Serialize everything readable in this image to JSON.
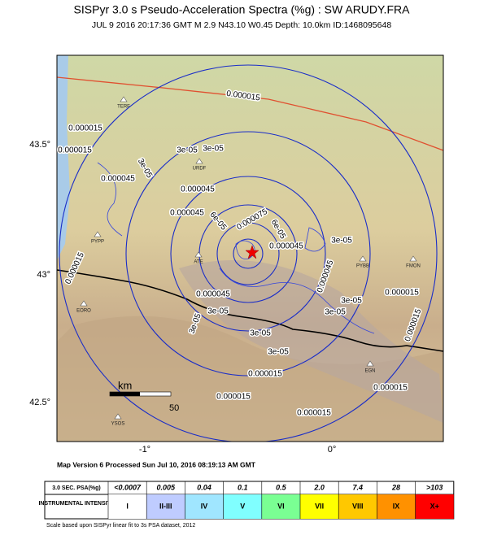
{
  "header": {
    "title": "SISPyr 3.0 s Pseudo-Acceleration Spectra (%g) : SW ARUDY.FRA",
    "subtitle": "JUL 9 2016 20:17:36  GMT   M 2.9   N43.10 W0.45   Depth: 10.0km   ID:1468095648"
  },
  "map": {
    "lat_labels": [
      "43.5°",
      "43°",
      "42.5°"
    ],
    "lon_labels": [
      "-1°",
      "0°"
    ],
    "contour_labels": [
      "0.000015",
      "0.000015",
      "0.000015",
      "3e-05",
      "3e-05",
      "3e-05",
      "0.000045",
      "0.000045",
      "0.000045",
      "0.000075",
      "6e-05",
      "6e-05",
      "0.000045",
      "3e-05",
      "0.000045",
      "0.000015",
      "0.000045",
      "3e-05",
      "3e-05",
      "3e-05",
      "3e-05",
      "3e-05",
      "3e-05",
      "0.000015",
      "0.000015",
      "0.000015",
      "0.000015",
      "0.000015",
      "0.000015"
    ],
    "stations": [
      "TERF",
      "URDF",
      "PYPP",
      "ATE",
      "PYBB",
      "FMON",
      "EORO",
      "YSOS",
      "EGN"
    ],
    "scale_unit": "km",
    "scale_value": "50"
  },
  "footer": {
    "processed": "Map Version 6 Processed Sun Jul 10, 2016 08:19:13 AM GMT",
    "note": "Scale based upon SISPyr linear fit to 3s PSA dataset, 2012"
  },
  "legend": {
    "psa_header": "3.0 SEC. PSA(%g)",
    "psa": [
      "<0.0007",
      "0.005",
      "0.04",
      "0.1",
      "0.5",
      "2.0",
      "7.4",
      "28",
      ">103"
    ],
    "intensity_header": "INSTRUMENTAL INTENSITY",
    "intensity": [
      "I",
      "II-III",
      "IV",
      "V",
      "VI",
      "VII",
      "VIII",
      "IX",
      "X+"
    ]
  }
}
